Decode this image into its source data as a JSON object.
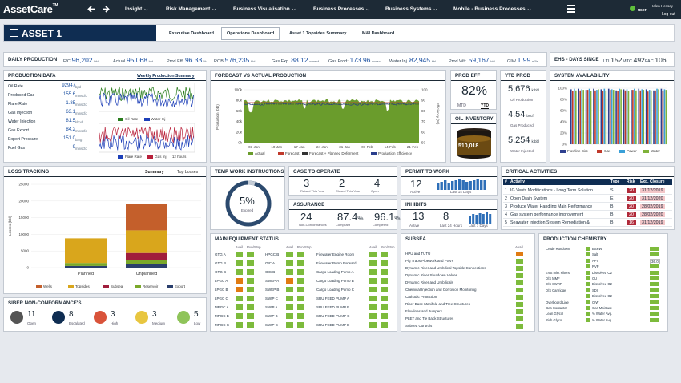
{
  "app": {
    "name": "AssetCare",
    "tm": "TM"
  },
  "nav": {
    "items": [
      "Insight",
      "Risk Management",
      "Business Visualisation",
      "Business Processes",
      "Business Systems",
      "Mobile - Business Processes"
    ],
    "user_name": "Helen Hessey",
    "user_label": "user:",
    "logout": "Log out"
  },
  "asset": {
    "title": "ASSET 1",
    "tabs": [
      "Executive Dashboard",
      "Operations Dashboard",
      "Asset 1 Topsides Summary",
      "M&I Dashboard"
    ],
    "active_tab": "Operations Dashboard"
  },
  "daily": {
    "title": "DAILY PRODUCTION",
    "items": [
      {
        "l": "F/C",
        "v": "96,202",
        "u": "bfd"
      },
      {
        "l": "Actual",
        "v": "95,068",
        "u": "bfd"
      },
      {
        "l": "Prod Eff.",
        "v": "96.33",
        "u": "%"
      },
      {
        "l": "ROB",
        "v": "576,235",
        "u": "bbl"
      },
      {
        "l": "Gas Exp.",
        "v": "88.12",
        "u": "mmscf"
      },
      {
        "l": "Gas Prod:",
        "v": "173.96",
        "u": "mmscf"
      },
      {
        "l": "Water Inj.",
        "v": "82,945",
        "u": "bbl"
      },
      {
        "l": "Prod Wtr.",
        "v": "59,167",
        "u": "bbl"
      },
      {
        "l": "GIW",
        "v": "1.99",
        "u": "m³/s"
      }
    ]
  },
  "ehs": {
    "title": "EHS - DAYS SINCE",
    "items": [
      {
        "l": "LTI",
        "v": "152"
      },
      {
        "l": "MTC",
        "v": "492"
      },
      {
        "l": "FAC",
        "v": "106"
      }
    ]
  },
  "proddata": {
    "title": "PRODUCTION DATA",
    "link": "Weekly Production Summary",
    "rows": [
      {
        "l": "Oil Rate",
        "v": "92947",
        "u": "bpd"
      },
      {
        "l": "Produced Gas",
        "v": "155.6",
        "u": "mmscfd"
      },
      {
        "l": "Flare Rate",
        "v": "1.85",
        "u": "mmscfd"
      },
      {
        "l": "Gas Injection",
        "v": "63.1",
        "u": "mmscfd"
      },
      {
        "l": "Water Injection",
        "v": "81.5",
        "u": "kbpd"
      },
      {
        "l": "Gas Export",
        "v": "84.2",
        "u": "mmscfd"
      },
      {
        "l": "Export Pressure",
        "v": "151.0",
        "u": "barg"
      },
      {
        "l": "Fuel Gas",
        "v": "9",
        "u": "mmscfd"
      }
    ],
    "legend1": [
      "Oil Rate",
      "Water Inj"
    ],
    "legend2": [
      "Flare Rate",
      "Gas Inj"
    ],
    "axis_note": "12 hours"
  },
  "forecast": {
    "title": "FORECAST VS ACTUAL PRODUCTION",
    "ylabel": "Production (bbl)",
    "y2label": "Efficiency (%)",
    "yticks": [
      "100k",
      "80k",
      "60k",
      "40k",
      "20k",
      "0k"
    ],
    "y2ticks": [
      "100",
      "90",
      "80",
      "70",
      "60",
      "50"
    ],
    "xticks": [
      "03-Jan",
      "10-Jan",
      "17-Jan",
      "24-Jan",
      "31-Jan",
      "07-Feb",
      "14-Feb",
      "21-Feb"
    ],
    "legend": [
      "Actual",
      "Forecast",
      "Forecast + Planned Deferment",
      "Production Efficiency"
    ],
    "colors": {
      "actual": "#6a9c2c",
      "forecast": "#c0392b",
      "deferment": "#333333",
      "efficiency": "#2a3e8c"
    }
  },
  "prodeff": {
    "title": "PROD EFF",
    "value": "82%",
    "tabs": [
      "MTD",
      "YTD"
    ]
  },
  "ytd": {
    "title": "YTD PROD",
    "rows": [
      {
        "v": "5,676",
        "u": "k bbl",
        "l": "Oil Production"
      },
      {
        "v": "4.54",
        "u": "bscf",
        "l": "Gas Produced"
      },
      {
        "v": "5,254",
        "u": "k bbl",
        "l": "Water Injected"
      }
    ]
  },
  "inventory": {
    "title": "OIL INVENTORY",
    "value": "510,018"
  },
  "sysavail": {
    "title": "SYSTEM AVAILABILITY",
    "yticks": [
      "100%",
      "80%",
      "60%",
      "40%",
      "20%",
      "0%"
    ],
    "legend": [
      "Flowline Circ",
      "Gas",
      "Power",
      "Water"
    ],
    "colors": [
      "#2e3f8f",
      "#c0392b",
      "#3aa0d8",
      "#7fb23a"
    ]
  },
  "loss": {
    "title": "LOSS TRACKING",
    "tabs": [
      "Summary",
      "Top Losses"
    ],
    "yticks": [
      "25000",
      "20000",
      "15000",
      "10000",
      "5000",
      "0"
    ],
    "ylabel": "Losses (bbl)",
    "categories": [
      "Planned",
      "Unplanned"
    ],
    "legend": [
      "Wells",
      "Topsides",
      "Subsea",
      "Reservoir",
      "Export"
    ],
    "colors": [
      "#c45f2b",
      "#d9a61c",
      "#a01e3c",
      "#7aa82a",
      "#2a3e6c"
    ]
  },
  "chart_data": [
    {
      "type": "bar",
      "title": "LOSS TRACKING",
      "ylabel": "Losses (bbl)",
      "ylim": [
        0,
        25000
      ],
      "categories": [
        "Planned",
        "Unplanned"
      ],
      "series": [
        {
          "name": "Wells",
          "values": [
            0,
            8000
          ]
        },
        {
          "name": "Topsides",
          "values": [
            7400,
            6800
          ]
        },
        {
          "name": "Subsea",
          "values": [
            0,
            2200
          ]
        },
        {
          "name": "Reservoir",
          "values": [
            900,
            1000
          ]
        },
        {
          "name": "Export",
          "values": [
            500,
            1200
          ]
        }
      ]
    },
    {
      "type": "bar",
      "title": "SYSTEM AVAILABILITY",
      "ylim": [
        0,
        100
      ],
      "series": [
        {
          "name": "Flowline Circ",
          "values": [
            98,
            99,
            97,
            99,
            98,
            99,
            96,
            98,
            97,
            99,
            98,
            96,
            99
          ]
        },
        {
          "name": "Gas",
          "values": [
            95,
            96,
            97,
            96,
            95,
            97,
            95,
            96,
            97,
            96,
            94,
            96,
            95
          ]
        },
        {
          "name": "Power",
          "values": [
            99,
            98,
            99,
            97,
            99,
            98,
            99,
            98,
            99,
            98,
            97,
            99,
            98
          ]
        },
        {
          "name": "Water",
          "values": [
            96,
            97,
            95,
            98,
            96,
            97,
            98,
            95,
            96,
            97,
            96,
            98,
            97
          ]
        }
      ]
    }
  ],
  "temp": {
    "title": "TEMP WORK INSTRUCTIONS",
    "value": "5%",
    "sub": "Expired",
    "fraction": 0.05
  },
  "cte": {
    "title": "CASE TO OPERATE",
    "items": [
      {
        "v": "3",
        "l": "Raised This Year"
      },
      {
        "v": "2",
        "l": "Closed This Year"
      },
      {
        "v": "4",
        "l": "Open"
      }
    ]
  },
  "assurance": {
    "title": "ASSURANCE",
    "items": [
      {
        "v": "24",
        "l": "Non-Conformances"
      },
      {
        "v": "87.4",
        "s": "%",
        "l": "Compliant"
      },
      {
        "v": "96.1",
        "s": "%",
        "l": "Completed"
      }
    ]
  },
  "ptw": {
    "title": "PERMIT TO WORK",
    "v": "12",
    "l": "Active",
    "note": "Last 14 Days"
  },
  "inhibits": {
    "title": "INHIBITS",
    "items": [
      {
        "v": "13",
        "l": "Active"
      },
      {
        "v": "8",
        "l": "Last 24 Hours"
      },
      {
        "v": "",
        "l": "Last 7 Days"
      }
    ]
  },
  "critical": {
    "title": "CRITICAL ACTIVITIES",
    "headers": [
      "#",
      "Activity",
      "Type",
      "Risk",
      "Exp. Closure"
    ],
    "rows": [
      [
        "1",
        "IG Vents Modifications - Long Term Solution",
        "S",
        "20",
        "31/12/2019"
      ],
      [
        "2",
        "Open Drain System",
        "E",
        "20",
        "31/12/2020"
      ],
      [
        "3",
        "Produce Water Handling Main Performance",
        "B",
        "20",
        "28/02/2019"
      ],
      [
        "4",
        "Gas system performance improvement",
        "B",
        "20",
        "28/02/2020"
      ],
      [
        "5",
        "Seawater Injection System Remediation &",
        "B",
        "16",
        "31/12/2019"
      ]
    ]
  },
  "mes": {
    "title": "MAIN EQUIPMENT STATUS",
    "headers": [
      "Avail",
      "Run/Stop"
    ],
    "col1": [
      "GTG A",
      "GTG B",
      "GTG C",
      "LPGC A",
      "LPGC B",
      "LPGC C",
      "MPGC A",
      "MPGC B",
      "MPGC C"
    ],
    "col2": [
      "HPGC B",
      "GIC A",
      "GIC B",
      "SWEP A",
      "SWEP B",
      "SWIP C",
      "SWIP A",
      "SWIP B",
      "SWIP C"
    ],
    "col3": [
      "Firewater Engine Room",
      "Firewater Pump Forward",
      "Cargo Loading Pump A",
      "Cargo Loading Pump B",
      "Cargo Loading Pump C",
      "SRU FEED PUMP A",
      "SRU FEED PUMP B",
      "SRU FEED PUMP C",
      "SRU FEED PUMP D"
    ]
  },
  "subsea": {
    "title": "SUBSEA",
    "header": "Avail",
    "items": [
      "HPU and TUTU",
      "Pig Traps Pipework and PSVs",
      "Dynamic Riser and Umbilical Topside Connections",
      "Dynamic Riser Shutdown Valves",
      "Dynamic Riser and Umbilicals",
      "Chemical Injection and Corrosion Monitoring",
      "Cathodic Protection",
      "Riser Base Manifold and Tree Structures",
      "Flowlines and Jumpers",
      "PLET and Tie Back Structures",
      "Subsea Controls"
    ]
  },
  "chem": {
    "title": "PRODUCTION CHEMISTRY",
    "left": [
      "Crude Rundown",
      "",
      "",
      "",
      "EVS Inlet Filters",
      "D/S MMF",
      "D/S SWRP",
      "D/S Cartridge",
      "",
      "Overboard Line",
      "Gas Contactor",
      "Lean Glycol",
      "Rich Glycol"
    ],
    "right": [
      "BS&W",
      "Salt",
      "API",
      "RVP",
      "Dissolved O2",
      "CU",
      "Dissolved O2",
      "SDI",
      "Dissolved O2",
      "OIW",
      "Gas Moisture",
      "% Water Avg.",
      "% Water Avg."
    ],
    "api_value": "36.0"
  },
  "ncr": {
    "title": "SIBER NON-CONFORMANCE'S",
    "items": [
      {
        "v": "11",
        "l": "Open",
        "c": "#555"
      },
      {
        "v": "8",
        "l": "Escalated",
        "c": "#0f2d52"
      },
      {
        "v": "3",
        "l": "High",
        "c": "#d9533a"
      },
      {
        "v": "3",
        "l": "Medium",
        "c": "#e8c640"
      },
      {
        "v": "5",
        "l": "Low",
        "c": "#8fc45a"
      }
    ]
  }
}
